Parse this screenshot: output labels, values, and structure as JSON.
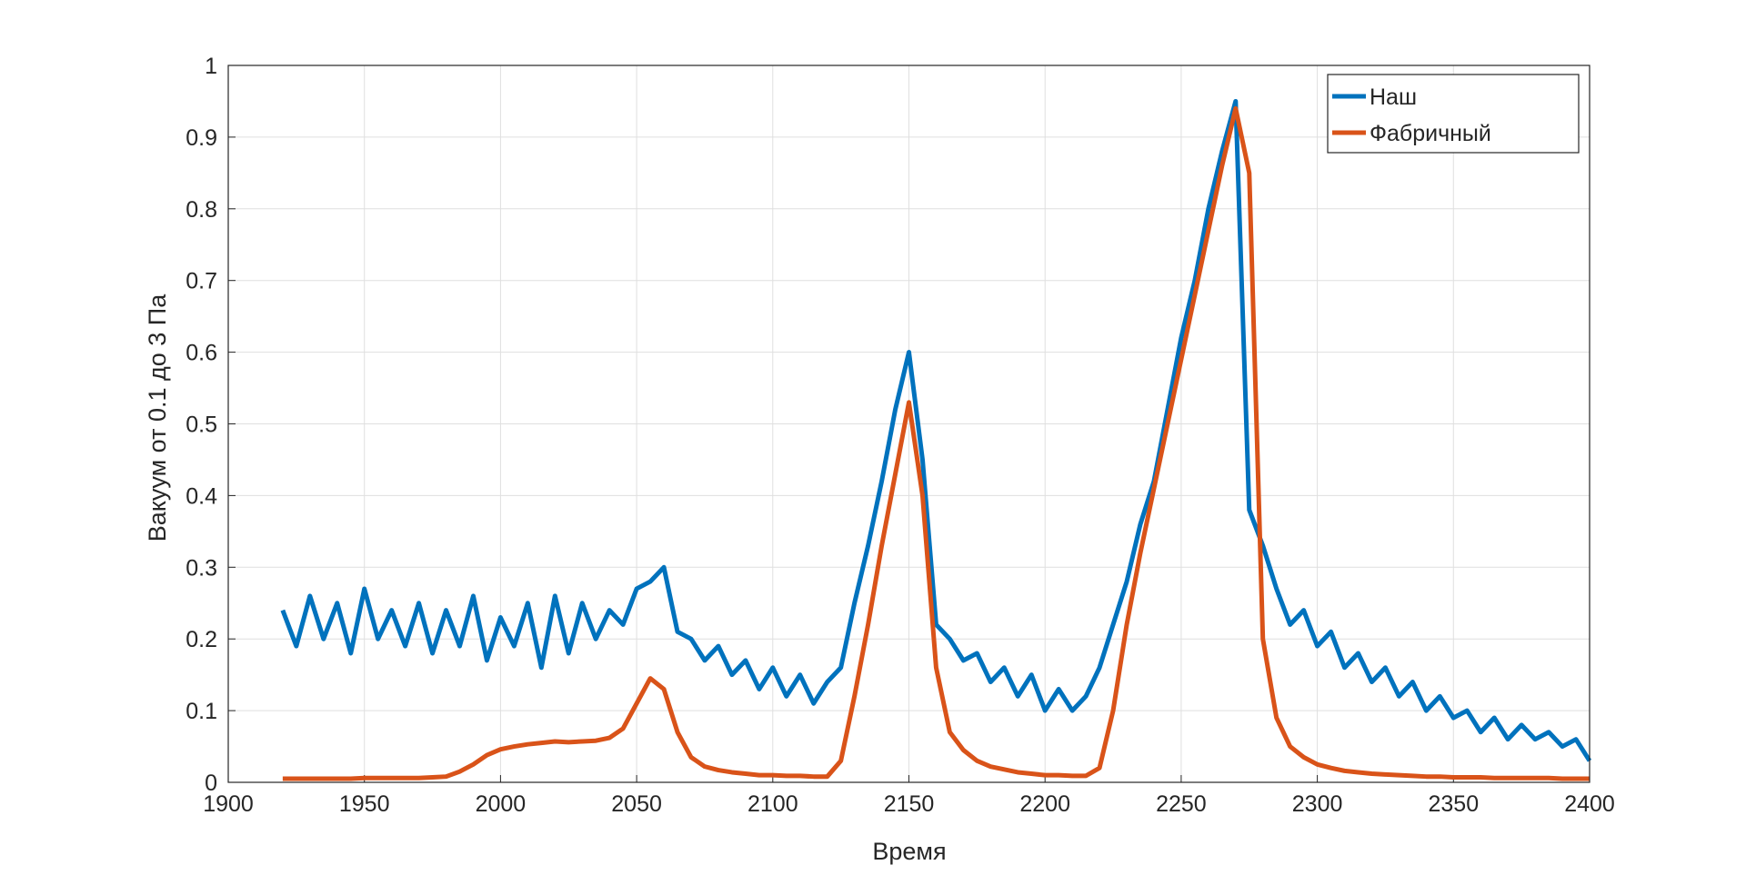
{
  "chart_data": {
    "type": "line",
    "x_label": "Время",
    "y_label": "Вакуум от 0.1 до 3 Па",
    "x": [
      1920,
      1925,
      1930,
      1935,
      1940,
      1945,
      1950,
      1955,
      1960,
      1965,
      1970,
      1975,
      1980,
      1985,
      1990,
      1995,
      2000,
      2005,
      2010,
      2015,
      2020,
      2025,
      2030,
      2035,
      2040,
      2045,
      2050,
      2055,
      2060,
      2065,
      2070,
      2075,
      2080,
      2085,
      2090,
      2095,
      2100,
      2105,
      2110,
      2115,
      2120,
      2125,
      2130,
      2135,
      2140,
      2145,
      2150,
      2155,
      2160,
      2165,
      2170,
      2175,
      2180,
      2185,
      2190,
      2195,
      2200,
      2205,
      2210,
      2215,
      2220,
      2225,
      2230,
      2235,
      2240,
      2245,
      2250,
      2255,
      2260,
      2265,
      2270,
      2275,
      2280,
      2285,
      2290,
      2295,
      2300,
      2305,
      2310,
      2315,
      2320,
      2325,
      2330,
      2335,
      2340,
      2345,
      2350,
      2355,
      2360,
      2365,
      2370,
      2375,
      2380,
      2385,
      2390,
      2395,
      2400
    ],
    "series": [
      {
        "name": "Наш",
        "color": "#0072BD",
        "values": [
          0.24,
          0.19,
          0.26,
          0.2,
          0.25,
          0.18,
          0.27,
          0.2,
          0.24,
          0.19,
          0.25,
          0.18,
          0.24,
          0.19,
          0.26,
          0.17,
          0.23,
          0.19,
          0.25,
          0.16,
          0.26,
          0.18,
          0.25,
          0.2,
          0.24,
          0.22,
          0.27,
          0.28,
          0.3,
          0.21,
          0.2,
          0.17,
          0.19,
          0.15,
          0.17,
          0.13,
          0.16,
          0.12,
          0.15,
          0.11,
          0.14,
          0.16,
          0.25,
          0.33,
          0.42,
          0.52,
          0.6,
          0.45,
          0.22,
          0.2,
          0.17,
          0.18,
          0.14,
          0.16,
          0.12,
          0.15,
          0.1,
          0.13,
          0.1,
          0.12,
          0.16,
          0.22,
          0.28,
          0.36,
          0.42,
          0.52,
          0.62,
          0.7,
          0.8,
          0.88,
          0.95,
          0.38,
          0.33,
          0.27,
          0.22,
          0.24,
          0.19,
          0.21,
          0.16,
          0.18,
          0.14,
          0.16,
          0.12,
          0.14,
          0.1,
          0.12,
          0.09,
          0.1,
          0.07,
          0.09,
          0.06,
          0.08,
          0.06,
          0.07,
          0.05,
          0.06,
          0.03
        ]
      },
      {
        "name": "Фабричный",
        "color": "#D95319",
        "values": [
          0.005,
          0.005,
          0.005,
          0.005,
          0.005,
          0.005,
          0.006,
          0.006,
          0.006,
          0.006,
          0.006,
          0.007,
          0.008,
          0.015,
          0.025,
          0.038,
          0.046,
          0.05,
          0.053,
          0.055,
          0.057,
          0.056,
          0.057,
          0.058,
          0.062,
          0.075,
          0.11,
          0.145,
          0.13,
          0.07,
          0.035,
          0.022,
          0.017,
          0.014,
          0.012,
          0.01,
          0.01,
          0.009,
          0.009,
          0.008,
          0.008,
          0.03,
          0.12,
          0.22,
          0.33,
          0.43,
          0.53,
          0.4,
          0.16,
          0.07,
          0.045,
          0.03,
          0.022,
          0.018,
          0.014,
          0.012,
          0.01,
          0.01,
          0.009,
          0.009,
          0.02,
          0.1,
          0.22,
          0.32,
          0.41,
          0.5,
          0.59,
          0.68,
          0.77,
          0.86,
          0.94,
          0.85,
          0.2,
          0.09,
          0.05,
          0.035,
          0.025,
          0.02,
          0.016,
          0.014,
          0.012,
          0.011,
          0.01,
          0.009,
          0.008,
          0.008,
          0.007,
          0.007,
          0.007,
          0.006,
          0.006,
          0.006,
          0.006,
          0.006,
          0.005,
          0.005,
          0.005
        ]
      }
    ],
    "xlim": [
      1900,
      2400
    ],
    "xticks": [
      1900,
      1950,
      2000,
      2050,
      2100,
      2150,
      2200,
      2250,
      2300,
      2350,
      2400
    ],
    "ylim": [
      0,
      1
    ],
    "yticks": [
      0,
      0.1,
      0.2,
      0.3,
      0.4,
      0.5,
      0.6,
      0.7,
      0.8,
      0.9,
      1
    ],
    "grid": true,
    "legend_position": "upper-right"
  }
}
